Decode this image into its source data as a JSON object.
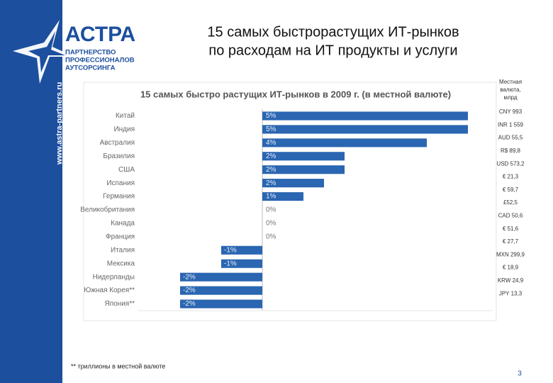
{
  "header": {
    "title_lines": [
      "15 самых быстрорастущих ИТ-рынков",
      "по расходам на ИТ продукты и услуги"
    ],
    "logo": {
      "name": "АСТРА",
      "lines": [
        "ПАРТНЕРСТВО",
        "ПРОФЕССИОНАЛОВ",
        "АУТСОРСИНГА"
      ],
      "url": "www.astra-partners.ru"
    }
  },
  "chart_data": {
    "type": "barh",
    "title": "15 самых быстро растущих ИТ-рынков в 2009 г. (в местной валюте)",
    "categories": [
      "Китай",
      "Индия",
      "Австралия",
      "Бразилия",
      "США",
      "Испания",
      "Германия",
      "Великобритания",
      "Канада",
      "Франция",
      "Италия",
      "Мексика",
      "Нидерланды",
      "Южная Корея**",
      "Япония**"
    ],
    "values": [
      5,
      5,
      4,
      2,
      2,
      1.5,
      1,
      0,
      0,
      0,
      -1,
      -1,
      -2,
      -2,
      -2
    ],
    "value_labels": [
      "5%",
      "5%",
      "4%",
      "2%",
      "2%",
      "2%",
      "1%",
      "0%",
      "0%",
      "0%",
      "-1%",
      "-1%",
      "-2%",
      "-2%",
      "-2%"
    ],
    "color": "#2a66b1",
    "xlim": [
      -2.5,
      5.5
    ],
    "local_currency_header": [
      "Местная",
      "валюта,",
      "млрд"
    ],
    "local_currency": [
      "CNY 993",
      "INR 1 559",
      "AUD 55,5",
      "R$ 89,8",
      "USD 573,2",
      "€ 21,3",
      "€ 59,7",
      "£52,5",
      "CAD 50,6",
      "€ 51,6",
      "€ 27,7",
      "MXN 299,9",
      "€ 18,9",
      "KRW 24,9",
      "JPY 13,3"
    ]
  },
  "footnote": "** триллионы в местной валюте",
  "page_number": "3"
}
